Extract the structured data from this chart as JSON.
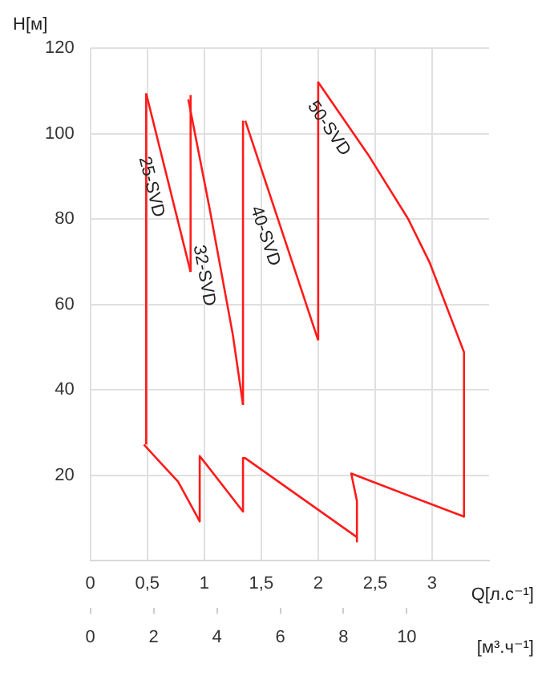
{
  "chart_data": {
    "type": "line",
    "ylabel": "H[м]",
    "xlabel": "Q[л.с⁻¹]",
    "x2label": "[м³.ч⁻¹]",
    "xlim": [
      0,
      3.5
    ],
    "xticks": [
      0,
      {
        "value": 0.5,
        "label": "0,5"
      },
      1,
      {
        "value": 1.5,
        "label": "1,5"
      },
      2,
      {
        "value": 2.5,
        "label": "2,5"
      },
      3
    ],
    "x2lim": [
      0,
      12.6
    ],
    "x2ticks": [
      0,
      2,
      4,
      6,
      8,
      10
    ],
    "ylim": [
      0,
      120
    ],
    "yticks": [
      20,
      40,
      60,
      80,
      100,
      120
    ],
    "grid": true,
    "legend": false,
    "marker": "none",
    "line_style": "solid",
    "series": [
      {
        "name": "25-SVD",
        "color": "#ff1a1a",
        "x": [
          0.49,
          0.88
        ],
        "values": [
          109.4,
          67.6
        ]
      },
      {
        "name": "32-SVD",
        "color": "#ff1a1a",
        "x": [
          0.86,
          1.05,
          1.25,
          1.34
        ],
        "values": [
          108,
          82,
          53,
          36.5
        ]
      },
      {
        "name": "40-SVD",
        "color": "#ff1a1a",
        "x": [
          1.36,
          2.0
        ],
        "values": [
          103,
          51.6
        ]
      },
      {
        "name": "50-SVD",
        "color": "#ff1a1a",
        "x": [
          2.0,
          2.0,
          2.44,
          2.79,
          2.98,
          3.22,
          3.28,
          3.28,
          2.29,
          2.34,
          2.34
        ],
        "values": [
          51.6,
          112,
          95,
          80,
          69.7,
          53,
          48.8,
          10.3,
          20.4,
          14,
          4.5
        ]
      },
      {
        "color": "#ff1a1a",
        "x": [
          0.49,
          0.49
        ],
        "values": [
          27.2,
          109.4
        ]
      },
      {
        "color": "#ff1a1a",
        "x": [
          0.88,
          0.88
        ],
        "values": [
          67.6,
          109
        ]
      },
      {
        "color": "#ff1a1a",
        "x": [
          1.34,
          1.34
        ],
        "values": [
          36.5,
          103
        ]
      },
      {
        "color": "#ff1a1a",
        "x": [
          2.34,
          1.36,
          1.34,
          1.34,
          0.96,
          0.96,
          0.77,
          0.61,
          0.47
        ],
        "values": [
          5.5,
          24,
          24,
          11.5,
          24.5,
          9.2,
          18.5,
          23.1,
          27.2
        ]
      }
    ]
  }
}
